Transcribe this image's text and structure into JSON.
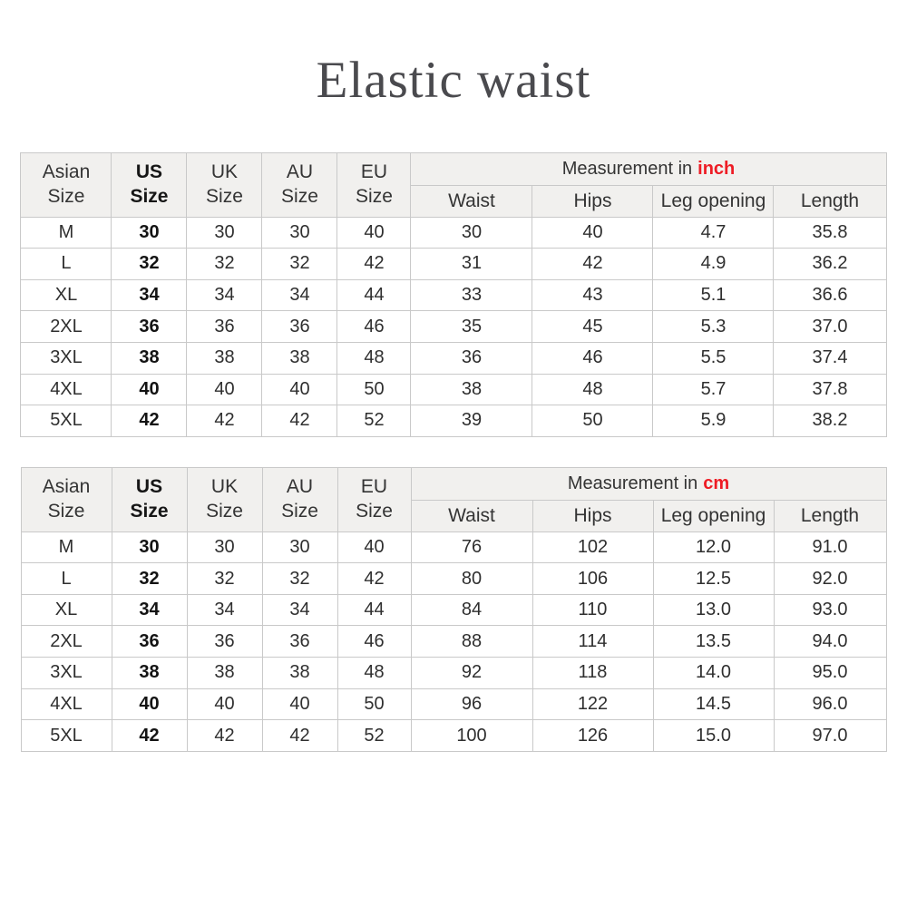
{
  "title": "Elastic waist",
  "colors": {
    "accent_red": "#ee1c25",
    "header_bg": "#f1f0ee",
    "border": "#c9c9c9",
    "body_text": "#2f2f2f",
    "title_text": "#4a4a4e"
  },
  "tables": [
    {
      "id": "inch",
      "group_header": {
        "prefix": "Measurement in",
        "unit": "inch"
      },
      "size_headers": [
        [
          "Asian",
          "Size"
        ],
        [
          "US",
          "Size"
        ],
        [
          "UK",
          "Size"
        ],
        [
          "AU",
          "Size"
        ],
        [
          "EU",
          "Size"
        ]
      ],
      "measure_headers": [
        "Waist",
        "Hips",
        "Leg opening",
        "Length"
      ],
      "rows": [
        [
          "M",
          "30",
          "30",
          "30",
          "40",
          "30",
          "40",
          "4.7",
          "35.8"
        ],
        [
          "L",
          "32",
          "32",
          "32",
          "42",
          "31",
          "42",
          "4.9",
          "36.2"
        ],
        [
          "XL",
          "34",
          "34",
          "34",
          "44",
          "33",
          "43",
          "5.1",
          "36.6"
        ],
        [
          "2XL",
          "36",
          "36",
          "36",
          "46",
          "35",
          "45",
          "5.3",
          "37.0"
        ],
        [
          "3XL",
          "38",
          "38",
          "38",
          "48",
          "36",
          "46",
          "5.5",
          "37.4"
        ],
        [
          "4XL",
          "40",
          "40",
          "40",
          "50",
          "38",
          "48",
          "5.7",
          "37.8"
        ],
        [
          "5XL",
          "42",
          "42",
          "42",
          "52",
          "39",
          "50",
          "5.9",
          "38.2"
        ]
      ]
    },
    {
      "id": "cm",
      "group_header": {
        "prefix": "Measurement in",
        "unit": "cm"
      },
      "size_headers": [
        [
          "Asian",
          "Size"
        ],
        [
          "US",
          "Size"
        ],
        [
          "UK",
          "Size"
        ],
        [
          "AU",
          "Size"
        ],
        [
          "EU",
          "Size"
        ]
      ],
      "measure_headers": [
        "Waist",
        "Hips",
        "Leg opening",
        "Length"
      ],
      "rows": [
        [
          "M",
          "30",
          "30",
          "30",
          "40",
          "76",
          "102",
          "12.0",
          "91.0"
        ],
        [
          "L",
          "32",
          "32",
          "32",
          "42",
          "80",
          "106",
          "12.5",
          "92.0"
        ],
        [
          "XL",
          "34",
          "34",
          "34",
          "44",
          "84",
          "110",
          "13.0",
          "93.0"
        ],
        [
          "2XL",
          "36",
          "36",
          "36",
          "46",
          "88",
          "114",
          "13.5",
          "94.0"
        ],
        [
          "3XL",
          "38",
          "38",
          "38",
          "48",
          "92",
          "118",
          "14.0",
          "95.0"
        ],
        [
          "4XL",
          "40",
          "40",
          "40",
          "50",
          "96",
          "122",
          "14.5",
          "96.0"
        ],
        [
          "5XL",
          "42",
          "42",
          "42",
          "52",
          "100",
          "126",
          "15.0",
          "97.0"
        ]
      ]
    }
  ]
}
